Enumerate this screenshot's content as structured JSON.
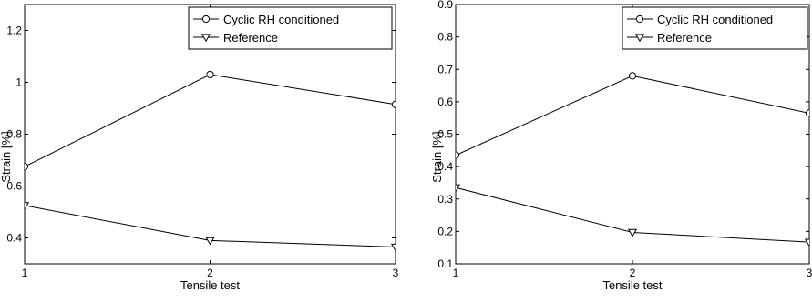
{
  "chart_data": [
    {
      "type": "line",
      "xlabel": "Tensile test",
      "ylabel": "Strain [%]",
      "xlim": [
        1,
        3
      ],
      "ylim": [
        0.3,
        1.3
      ],
      "x_ticks": [
        1,
        2,
        3
      ],
      "y_ticks": [
        0.4,
        0.6,
        0.8,
        1,
        1.2
      ],
      "y_tick_labels": [
        "0.4",
        "0.6",
        "0.8",
        "1",
        "1.2"
      ],
      "grid": false,
      "legend_position": "top-right",
      "x": [
        1,
        2,
        3
      ],
      "series": [
        {
          "name": "Cyclic RH conditioned",
          "marker": "circle",
          "values": [
            0.675,
            1.03,
            0.915
          ]
        },
        {
          "name": "Reference",
          "marker": "triangle-down",
          "values": [
            0.525,
            0.39,
            0.365
          ]
        }
      ]
    },
    {
      "type": "line",
      "xlabel": "Tensile test",
      "ylabel": "Strain [%]",
      "xlim": [
        1,
        3
      ],
      "ylim": [
        0.1,
        0.9
      ],
      "x_ticks": [
        1,
        2,
        3
      ],
      "y_ticks": [
        0.1,
        0.2,
        0.3,
        0.4,
        0.5,
        0.6,
        0.7,
        0.8,
        0.9
      ],
      "y_tick_labels": [
        "0.1",
        "0.2",
        "0.3",
        "0.4",
        "0.5",
        "0.6",
        "0.7",
        "0.8",
        "0.9"
      ],
      "grid": false,
      "legend_position": "top-right",
      "x": [
        1,
        2,
        3
      ],
      "series": [
        {
          "name": "Cyclic RH conditioned",
          "marker": "circle",
          "values": [
            0.435,
            0.68,
            0.565
          ]
        },
        {
          "name": "Reference",
          "marker": "triangle-down",
          "values": [
            0.335,
            0.197,
            0.167
          ]
        }
      ]
    }
  ]
}
